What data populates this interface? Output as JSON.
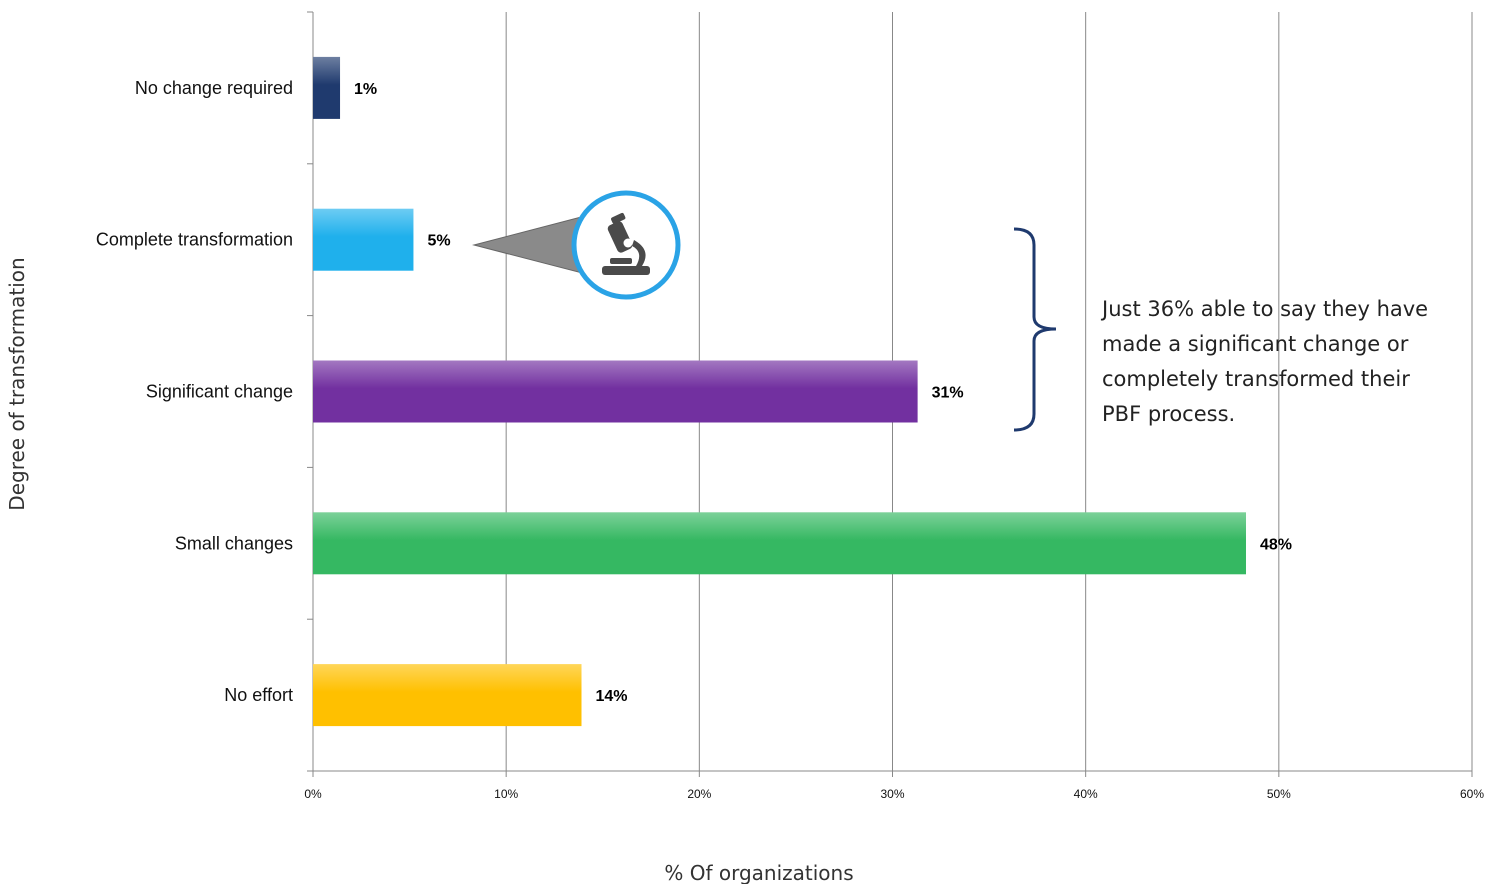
{
  "chart_data": {
    "type": "bar",
    "orientation": "horizontal",
    "categories": [
      "No change required",
      "Complete transformation",
      "Significant change",
      "Small changes",
      "No effort"
    ],
    "values": [
      1.4,
      5.2,
      31.3,
      48.3,
      13.9
    ],
    "value_labels": [
      "1%",
      "5%",
      "31%",
      "48%",
      "14%"
    ],
    "colors": [
      "#1f3a6e",
      "#1fb0ec",
      "#7230a0",
      "#35b862",
      "#ffc000"
    ],
    "xlabel": "% Of organizations",
    "ylabel": "Degree of transformation",
    "xlim": [
      0,
      60
    ],
    "xticks": [
      0,
      10,
      20,
      30,
      40,
      50,
      60
    ],
    "xtick_labels": [
      "0%",
      "10%",
      "20%",
      "30%",
      "40%",
      "50%",
      "60%"
    ],
    "grid": "vertical",
    "annotation": {
      "text_lines": [
        "Just 36% able to say they have",
        "made a significant change or",
        "completely transformed their",
        "PBF process."
      ],
      "bracket_spans": [
        "Complete transformation",
        "Significant change"
      ],
      "callout_icon": "microscope-icon",
      "callout_target": "Complete transformation"
    }
  }
}
